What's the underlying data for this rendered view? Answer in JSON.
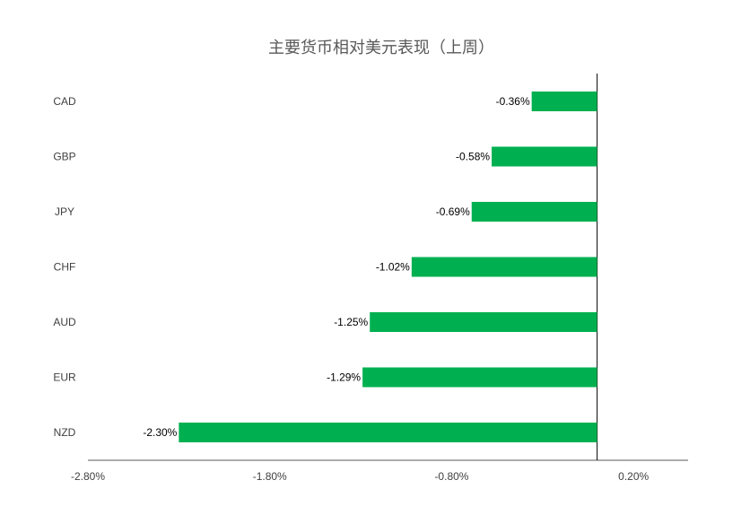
{
  "chart_data": {
    "type": "bar",
    "orientation": "horizontal",
    "title": "主要货币相对美元表现（上周）",
    "categories": [
      "CAD",
      "GBP",
      "JPY",
      "CHF",
      "AUD",
      "EUR",
      "NZD"
    ],
    "values": [
      -0.36,
      -0.58,
      -0.69,
      -1.02,
      -1.25,
      -1.29,
      -2.3
    ],
    "value_labels": [
      "-0.36%",
      "-0.58%",
      "-0.69%",
      "-1.02%",
      "-1.25%",
      "-1.29%",
      "-2.30%"
    ],
    "xlim": [
      -2.8,
      0.5
    ],
    "xticks": [
      -2.8,
      -1.8,
      -0.8,
      0.2
    ],
    "xtick_labels": [
      "-2.80%",
      "-1.80%",
      "-0.80%",
      "0.20%"
    ],
    "xlabel": "",
    "ylabel": "",
    "grid": false,
    "legend": "none",
    "bar_color": "#00B050"
  }
}
